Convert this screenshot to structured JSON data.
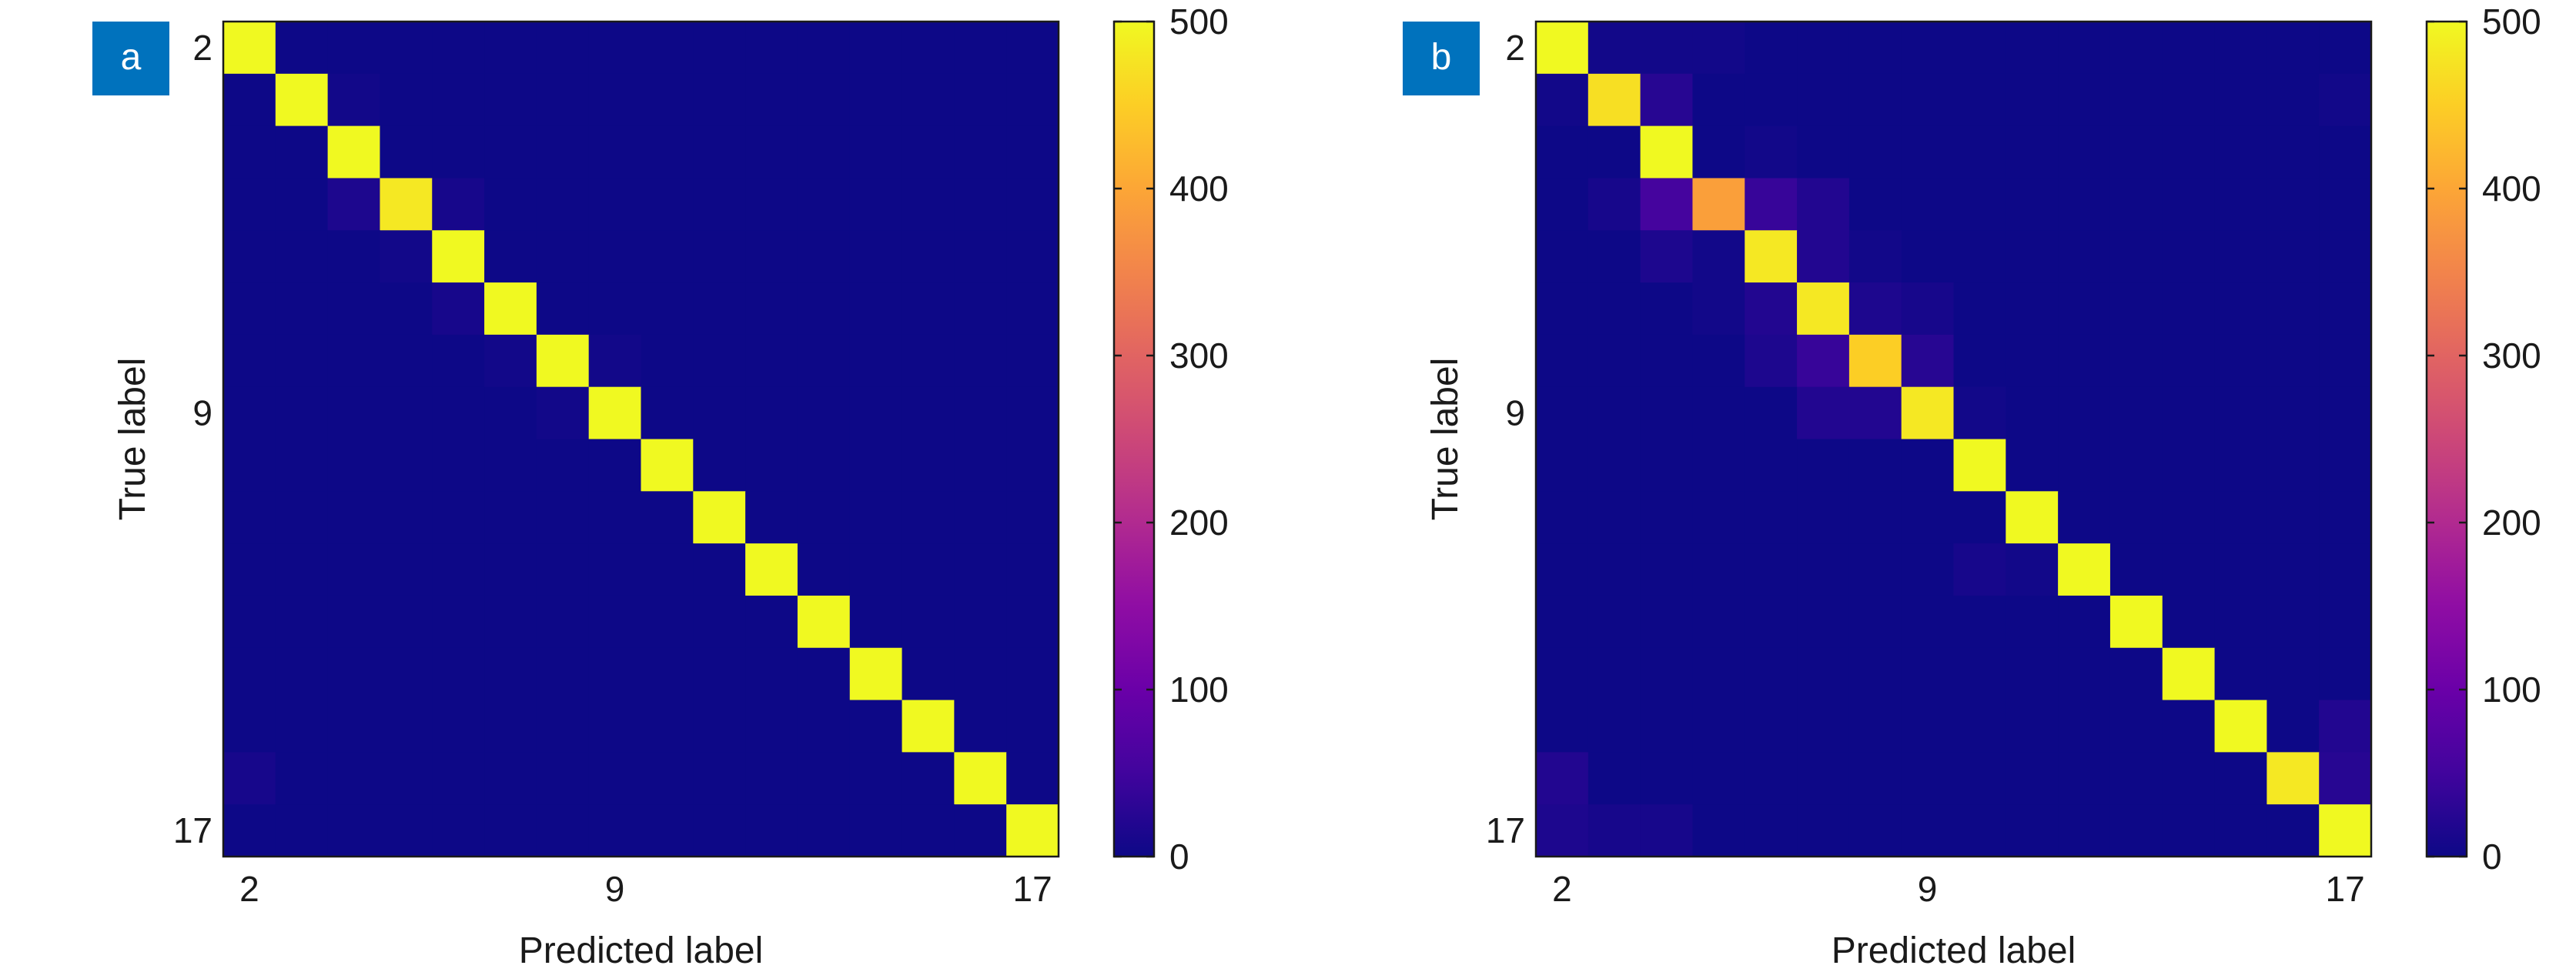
{
  "chart_data": [
    {
      "type": "heatmap",
      "panel_label": "a",
      "xlabel": "Predicted label",
      "ylabel": "True label",
      "x_ticks": [
        "2",
        "9",
        "17"
      ],
      "y_ticks": [
        "2",
        "9",
        "17"
      ],
      "class_range": [
        2,
        17
      ],
      "colorbar": {
        "min": 0,
        "max": 500,
        "ticks": [
          "0",
          "100",
          "200",
          "300",
          "400",
          "500"
        ],
        "colormap": "plasma"
      },
      "values": [
        [
          500,
          0,
          0,
          0,
          0,
          0,
          0,
          0,
          0,
          0,
          0,
          0,
          0,
          0,
          0,
          0
        ],
        [
          0,
          500,
          5,
          0,
          0,
          0,
          0,
          0,
          0,
          0,
          0,
          0,
          0,
          0,
          0,
          0
        ],
        [
          0,
          0,
          500,
          0,
          0,
          0,
          0,
          0,
          0,
          0,
          0,
          0,
          0,
          0,
          0,
          0
        ],
        [
          0,
          0,
          15,
          480,
          10,
          0,
          0,
          0,
          0,
          0,
          0,
          0,
          0,
          0,
          0,
          0
        ],
        [
          0,
          0,
          0,
          5,
          500,
          0,
          0,
          0,
          0,
          0,
          0,
          0,
          0,
          0,
          0,
          0
        ],
        [
          0,
          0,
          0,
          0,
          10,
          500,
          0,
          0,
          0,
          0,
          0,
          0,
          0,
          0,
          0,
          0
        ],
        [
          0,
          0,
          0,
          0,
          0,
          5,
          500,
          5,
          0,
          0,
          0,
          0,
          0,
          0,
          0,
          0
        ],
        [
          0,
          0,
          0,
          0,
          0,
          0,
          5,
          500,
          0,
          0,
          0,
          0,
          0,
          0,
          0,
          0
        ],
        [
          0,
          0,
          0,
          0,
          0,
          0,
          0,
          0,
          500,
          0,
          0,
          0,
          0,
          0,
          0,
          0
        ],
        [
          0,
          0,
          0,
          0,
          0,
          0,
          0,
          0,
          0,
          500,
          0,
          0,
          0,
          0,
          0,
          0
        ],
        [
          0,
          0,
          0,
          0,
          0,
          0,
          0,
          0,
          0,
          0,
          500,
          0,
          0,
          0,
          0,
          0
        ],
        [
          0,
          0,
          0,
          0,
          0,
          0,
          0,
          0,
          0,
          0,
          0,
          500,
          0,
          0,
          0,
          0
        ],
        [
          0,
          0,
          0,
          0,
          0,
          0,
          0,
          0,
          0,
          0,
          0,
          0,
          500,
          0,
          0,
          0
        ],
        [
          0,
          0,
          0,
          0,
          0,
          0,
          0,
          0,
          0,
          0,
          0,
          0,
          0,
          500,
          0,
          0
        ],
        [
          10,
          0,
          0,
          0,
          0,
          0,
          0,
          0,
          0,
          0,
          0,
          0,
          0,
          0,
          500,
          0
        ],
        [
          0,
          0,
          0,
          0,
          0,
          0,
          0,
          0,
          0,
          0,
          0,
          0,
          0,
          0,
          0,
          500
        ]
      ]
    },
    {
      "type": "heatmap",
      "panel_label": "b",
      "xlabel": "Predicted label",
      "ylabel": "True label",
      "x_ticks": [
        "2",
        "9",
        "17"
      ],
      "y_ticks": [
        "2",
        "9",
        "17"
      ],
      "class_range": [
        2,
        17
      ],
      "colorbar": {
        "min": 0,
        "max": 500,
        "ticks": [
          "0",
          "100",
          "200",
          "300",
          "400",
          "500"
        ],
        "colormap": "plasma"
      },
      "values": [
        [
          500,
          5,
          5,
          5,
          0,
          0,
          0,
          0,
          0,
          0,
          0,
          0,
          0,
          0,
          0,
          0
        ],
        [
          5,
          470,
          25,
          0,
          0,
          0,
          0,
          0,
          0,
          0,
          0,
          0,
          0,
          0,
          0,
          5
        ],
        [
          0,
          0,
          500,
          0,
          5,
          0,
          0,
          0,
          0,
          0,
          0,
          0,
          0,
          0,
          0,
          0
        ],
        [
          0,
          10,
          55,
          390,
          40,
          20,
          0,
          0,
          0,
          0,
          0,
          0,
          0,
          0,
          0,
          0
        ],
        [
          0,
          0,
          15,
          5,
          480,
          20,
          5,
          0,
          0,
          0,
          0,
          0,
          0,
          0,
          0,
          0
        ],
        [
          0,
          0,
          0,
          5,
          20,
          480,
          15,
          10,
          0,
          0,
          0,
          0,
          0,
          0,
          0,
          0
        ],
        [
          0,
          0,
          0,
          0,
          15,
          40,
          450,
          25,
          0,
          0,
          0,
          0,
          0,
          0,
          0,
          0
        ],
        [
          0,
          0,
          0,
          0,
          0,
          20,
          20,
          480,
          5,
          0,
          0,
          0,
          0,
          0,
          0,
          0
        ],
        [
          0,
          0,
          0,
          0,
          0,
          0,
          0,
          0,
          500,
          0,
          0,
          0,
          0,
          0,
          0,
          0
        ],
        [
          0,
          0,
          0,
          0,
          0,
          0,
          0,
          0,
          0,
          500,
          0,
          0,
          0,
          0,
          0,
          0
        ],
        [
          0,
          0,
          0,
          0,
          0,
          0,
          0,
          0,
          10,
          5,
          500,
          0,
          0,
          0,
          0,
          0
        ],
        [
          0,
          0,
          0,
          0,
          0,
          0,
          0,
          0,
          0,
          0,
          0,
          500,
          0,
          0,
          0,
          0
        ],
        [
          0,
          0,
          0,
          0,
          0,
          0,
          0,
          0,
          0,
          0,
          0,
          0,
          500,
          0,
          0,
          0
        ],
        [
          0,
          0,
          0,
          0,
          0,
          0,
          0,
          0,
          0,
          0,
          0,
          0,
          0,
          500,
          0,
          20
        ],
        [
          20,
          0,
          0,
          0,
          0,
          0,
          0,
          0,
          0,
          0,
          0,
          0,
          0,
          0,
          480,
          25
        ],
        [
          15,
          10,
          10,
          0,
          0,
          0,
          0,
          0,
          0,
          0,
          0,
          0,
          0,
          0,
          0,
          500
        ]
      ]
    }
  ]
}
